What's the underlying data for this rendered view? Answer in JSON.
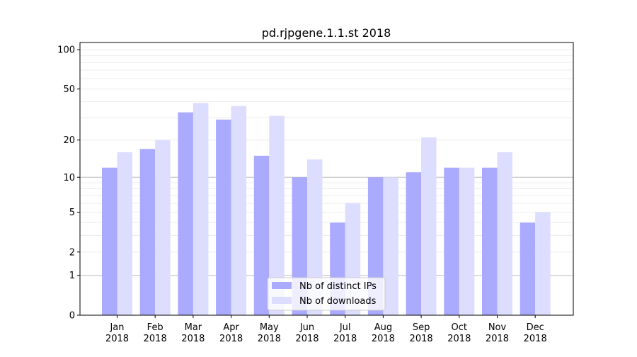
{
  "chart_data": {
    "type": "bar",
    "title": "pd.rjpgene.1.1.st 2018",
    "xlabel": "",
    "ylabel": "",
    "yscale": "symlog",
    "ylim": [
      0,
      110
    ],
    "yticks": [
      0,
      1,
      2,
      5,
      10,
      20,
      50,
      100
    ],
    "ytick_labels": [
      "0",
      "1",
      "2",
      "5",
      "10",
      "20",
      "50",
      "100"
    ],
    "categories": [
      "Jan\n2018",
      "Feb\n2018",
      "Mar\n2018",
      "Apr\n2018",
      "May\n2018",
      "Jun\n2018",
      "Jul\n2018",
      "Aug\n2018",
      "Sep\n2018",
      "Oct\n2018",
      "Nov\n2018",
      "Dec\n2018"
    ],
    "series": [
      {
        "name": "Nb of distinct IPs",
        "color": "#aaaaff",
        "values": [
          12,
          17,
          33,
          29,
          15,
          10,
          4,
          10,
          11,
          12,
          12,
          4
        ]
      },
      {
        "name": "Nb of downloads",
        "color": "#ddddff",
        "values": [
          16,
          20,
          39,
          37,
          31,
          14,
          6,
          10,
          21,
          12,
          16,
          5
        ]
      }
    ],
    "legend_position": "bottom-center",
    "grid": true
  }
}
